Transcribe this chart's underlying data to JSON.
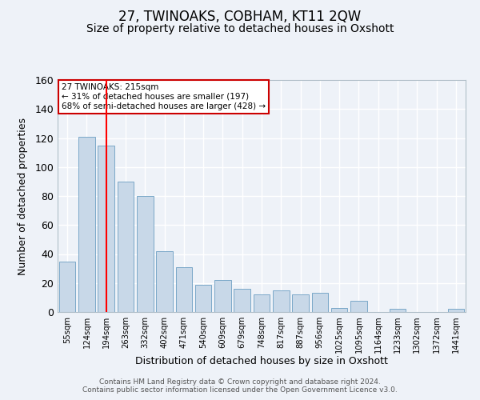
{
  "title": "27, TWINOAKS, COBHAM, KT11 2QW",
  "subtitle": "Size of property relative to detached houses in Oxshott",
  "xlabel": "Distribution of detached houses by size in Oxshott",
  "ylabel": "Number of detached properties",
  "categories": [
    "55sqm",
    "124sqm",
    "194sqm",
    "263sqm",
    "332sqm",
    "402sqm",
    "471sqm",
    "540sqm",
    "609sqm",
    "679sqm",
    "748sqm",
    "817sqm",
    "887sqm",
    "956sqm",
    "1025sqm",
    "1095sqm",
    "1164sqm",
    "1233sqm",
    "1302sqm",
    "1372sqm",
    "1441sqm"
  ],
  "values": [
    35,
    121,
    115,
    90,
    80,
    42,
    31,
    19,
    22,
    16,
    12,
    15,
    12,
    13,
    3,
    8,
    0,
    2,
    0,
    0,
    2
  ],
  "bar_color": "#c8d8e8",
  "bar_edge_color": "#7ba8c8",
  "red_line_index": 2,
  "ylim": [
    0,
    160
  ],
  "yticks": [
    0,
    20,
    40,
    60,
    80,
    100,
    120,
    140,
    160
  ],
  "annotation_title": "27 TWINOAKS: 215sqm",
  "annotation_line1": "← 31% of detached houses are smaller (197)",
  "annotation_line2": "68% of semi-detached houses are larger (428) →",
  "annotation_box_color": "#ffffff",
  "annotation_box_edge": "#cc0000",
  "footer_line1": "Contains HM Land Registry data © Crown copyright and database right 2024.",
  "footer_line2": "Contains public sector information licensed under the Open Government Licence v3.0.",
  "background_color": "#eef2f8",
  "grid_color": "#ffffff",
  "title_fontsize": 12,
  "subtitle_fontsize": 10
}
